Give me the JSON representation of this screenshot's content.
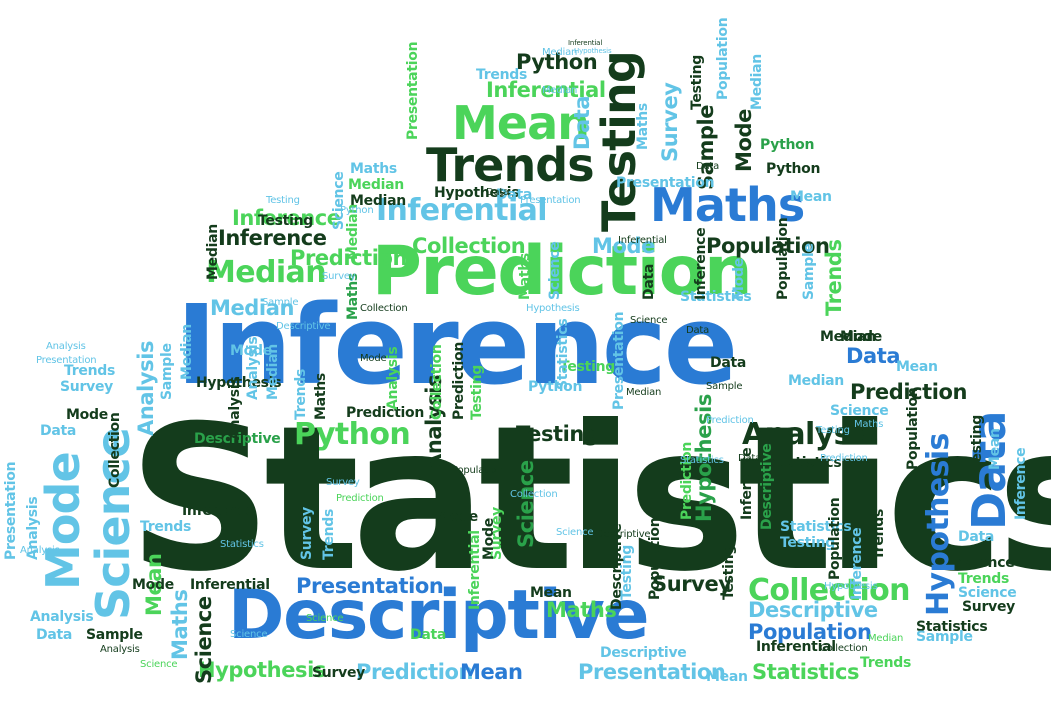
{
  "word_cloud": {
    "words": [
      "Statistics",
      "Inference",
      "Descriptive",
      "Prediction",
      "Testing",
      "Maths",
      "Mean",
      "Trends",
      "Inferential",
      "Median",
      "Data",
      "Science",
      "Mode",
      "Analysis",
      "Python",
      "Hypothesis",
      "Collection",
      "Population",
      "Presentation",
      "Survey",
      "Sample"
    ]
  }
}
